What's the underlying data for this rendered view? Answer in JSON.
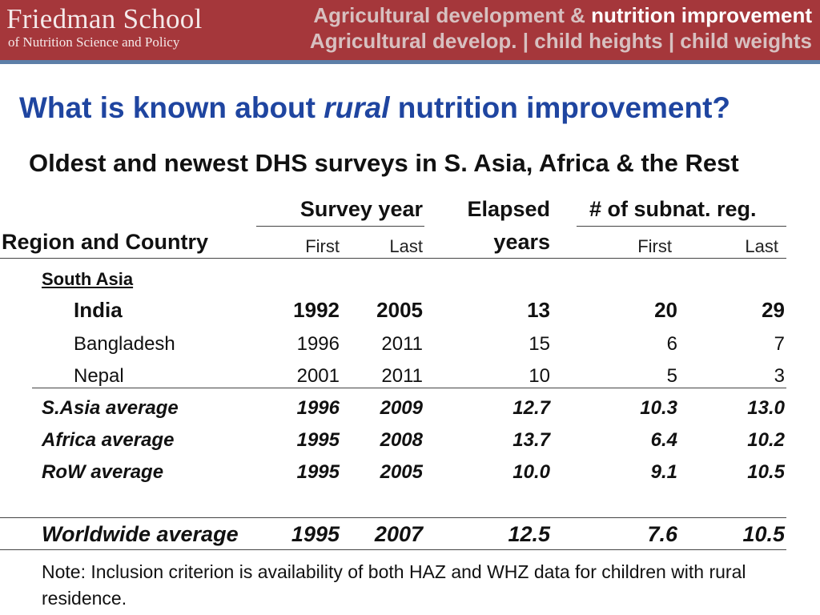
{
  "banner": {
    "logo_title": "Friedman School",
    "logo_subtitle": "of Nutrition Science and Policy",
    "header_line1_pre": "Agricultural development & ",
    "header_line1_highlight": "nutrition improvement",
    "header_line2": "Agricultural develop. | child heights | child weights"
  },
  "title": {
    "pre": "What is known about ",
    "emphasis": "rural",
    "post": " nutrition improvement?"
  },
  "subtitle": "Oldest and newest DHS surveys in S. Asia, Africa & the Rest",
  "table": {
    "headers": {
      "region": "Region and Country",
      "survey_year": "Survey year",
      "elapsed_line1": "Elapsed",
      "elapsed_line2": "years",
      "subnat": "# of subnat. reg.",
      "first": "First",
      "last": "Last",
      "first2": "First",
      "last2": "Last"
    },
    "section": "South Asia",
    "rows": [
      {
        "label": "India",
        "first": "1992",
        "last": "2005",
        "elapsed": "13",
        "sub_first": "20",
        "sub_last": "29"
      },
      {
        "label": "Bangladesh",
        "first": "1996",
        "last": "2011",
        "elapsed": "15",
        "sub_first": "6",
        "sub_last": "7"
      },
      {
        "label": "Nepal",
        "first": "2001",
        "last": "2011",
        "elapsed": "10",
        "sub_first": "5",
        "sub_last": "3"
      },
      {
        "label": "S.Asia average",
        "first": "1996",
        "last": "2009",
        "elapsed": "12.7",
        "sub_first": "10.3",
        "sub_last": "13.0"
      },
      {
        "label": "Africa average",
        "first": "1995",
        "last": "2008",
        "elapsed": "13.7",
        "sub_first": "6.4",
        "sub_last": "10.2"
      },
      {
        "label": "RoW average",
        "first": "1995",
        "last": "2005",
        "elapsed": "10.0",
        "sub_first": "9.1",
        "sub_last": "10.5"
      },
      {
        "label": "Worldwide average",
        "first": "1995",
        "last": "2007",
        "elapsed": "12.5",
        "sub_first": "7.6",
        "sub_last": "10.5"
      }
    ]
  },
  "note": "Note:  Inclusion criterion is availability of both HAZ and WHZ data for children with rural residence."
}
